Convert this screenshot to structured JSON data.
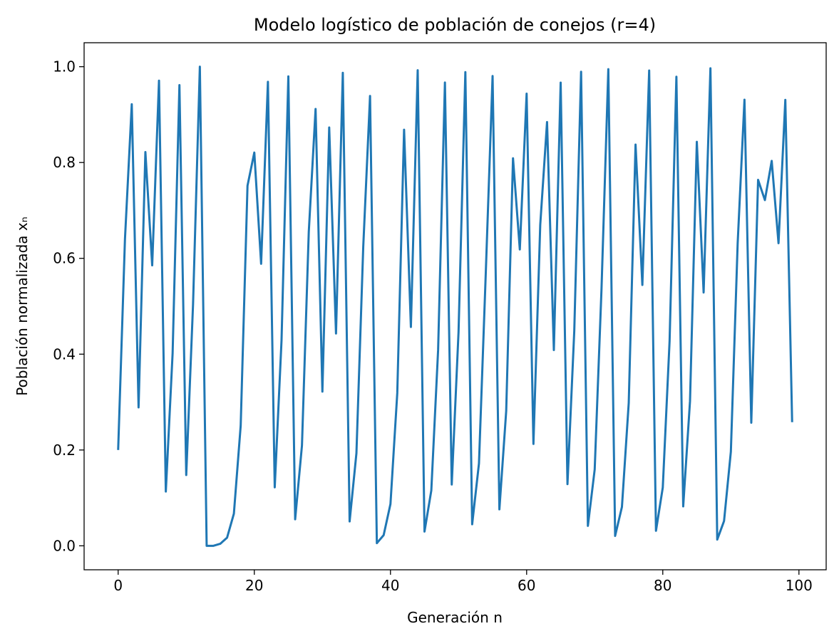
{
  "chart_data": {
    "type": "line",
    "title": "Modelo logístico de población de conejos (r=4)",
    "xlabel": "Generación n",
    "ylabel": "Población normalizada xₙ",
    "xlim": [
      -5,
      104
    ],
    "ylim": [
      -0.05,
      1.05
    ],
    "xticks": [
      0,
      20,
      40,
      60,
      80,
      100
    ],
    "yticks": [
      0.0,
      0.2,
      0.4,
      0.6,
      0.8,
      1.0
    ],
    "xtick_labels": [
      "0",
      "20",
      "40",
      "60",
      "80",
      "100"
    ],
    "ytick_labels": [
      "0.0",
      "0.2",
      "0.4",
      "0.6",
      "0.8",
      "1.0"
    ],
    "grid": false,
    "legend": "none",
    "series": [
      {
        "color": "#1f77b4",
        "x": [
          0,
          1,
          2,
          3,
          4,
          5,
          6,
          7,
          8,
          9,
          10,
          11,
          12,
          13,
          14,
          15,
          16,
          17,
          18,
          19,
          20,
          21,
          22,
          23,
          24,
          25,
          26,
          27,
          28,
          29,
          30,
          31,
          32,
          33,
          34,
          35,
          36,
          37,
          38,
          39,
          40,
          41,
          42,
          43,
          44,
          45,
          46,
          47,
          48,
          49,
          50,
          51,
          52,
          53,
          54,
          55,
          56,
          57,
          58,
          59,
          60,
          61,
          62,
          63,
          64,
          65,
          66,
          67,
          68,
          69,
          70,
          71,
          72,
          73,
          74,
          75,
          76,
          77,
          78,
          79,
          80,
          81,
          82,
          83,
          84,
          85,
          86,
          87,
          88,
          89,
          90,
          91,
          92,
          93,
          94,
          95,
          96,
          97,
          98,
          99
        ],
        "y": [
          0.2,
          0.64,
          0.9216,
          0.289,
          0.8219,
          0.5854,
          0.9708,
          0.1133,
          0.402,
          0.9616,
          0.1478,
          0.5039,
          1.0,
          0.0,
          0.0,
          0.0043,
          0.0171,
          0.0672,
          0.2508,
          0.7516,
          0.8208,
          0.5887,
          0.9685,
          0.1221,
          0.4289,
          0.9798,
          0.0553,
          0.2094,
          0.6553,
          0.9117,
          0.3219,
          0.8731,
          0.4432,
          0.9871,
          0.0509,
          0.1933,
          0.6237,
          0.9388,
          0.0056,
          0.0223,
          0.0873,
          0.3187,
          0.8685,
          0.4568,
          0.9925,
          0.0298,
          0.1156,
          0.409,
          0.9669,
          0.128,
          0.4466,
          0.9886,
          0.045,
          0.172,
          0.5696,
          0.9806,
          0.0761,
          0.2814,
          0.8088,
          0.6186,
          0.9437,
          0.2127,
          0.6699,
          0.8845,
          0.4087,
          0.9667,
          0.1288,
          0.4487,
          0.9895,
          0.0416,
          0.1594,
          0.536,
          0.9948,
          0.0207,
          0.0812,
          0.2984,
          0.8375,
          0.5445,
          0.9921,
          0.0314,
          0.1217,
          0.4275,
          0.979,
          0.0823,
          0.302,
          0.8432,
          0.5288,
          0.9967,
          0.0131,
          0.0518,
          0.1964,
          0.6313,
          0.931,
          0.257,
          0.7638,
          0.7216,
          0.8035,
          0.6316,
          0.9307,
          0.2581
        ]
      }
    ]
  }
}
